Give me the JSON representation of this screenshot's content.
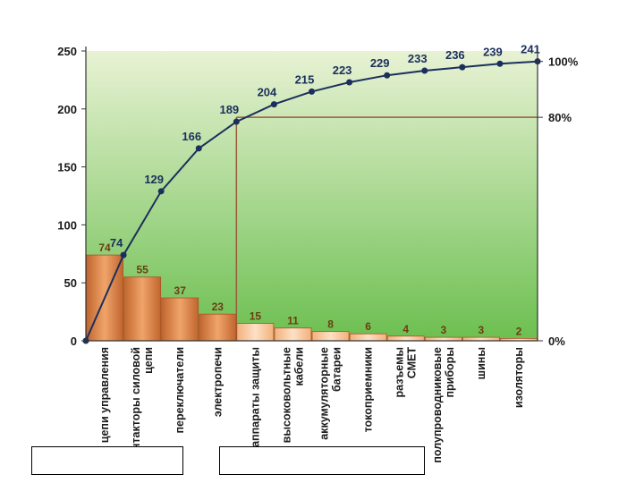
{
  "chart_data": {
    "type": "bar",
    "categories": [
      "цепи управления",
      "контакторы силовой цепи",
      "переключатели",
      "электропечи",
      "аппараты защиты",
      "высоковольтные кабели",
      "аккумуляторные батареи",
      "токоприемники",
      "разъемы СМЕТ",
      "полупроводниковые приборы",
      "шины",
      "изоляторы"
    ],
    "values": [
      74,
      55,
      37,
      23,
      15,
      11,
      8,
      6,
      4,
      3,
      3,
      2
    ],
    "cumulative": [
      74,
      129,
      166,
      189,
      204,
      215,
      223,
      229,
      233,
      236,
      239,
      241
    ],
    "highlighted_categories": [
      "аппараты защиты",
      "высоковольтные кабели",
      "аккумуляторные батареи",
      "токоприемники",
      "разъемы СМЕТ",
      "полупроводниковые приборы",
      "шины",
      "изоляторы"
    ],
    "ylim": [
      0,
      250
    ],
    "yticks": [
      0,
      50,
      100,
      150,
      200,
      250
    ],
    "y2ticks": [
      "0%",
      "80%",
      "100%"
    ],
    "colors": {
      "bar": "#d9824a",
      "bar_highlight": "#f7c49a",
      "bar_label": "#6b3d12",
      "line": "#1b2f5c",
      "cum_label": "#1b2f5c",
      "axis_text": "#1a1a1a",
      "guide": "#9a5a3a",
      "plot_top": "#e8f2d4",
      "plot_bottom": "#6cbf50"
    }
  }
}
